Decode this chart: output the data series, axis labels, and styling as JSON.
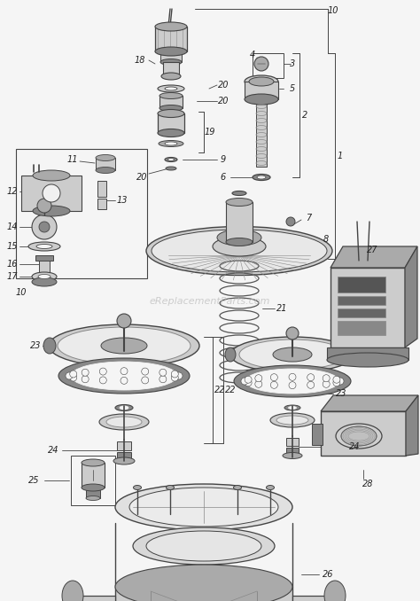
{
  "bg_color": "#f5f5f5",
  "line_color": "#444444",
  "dark_color": "#222222",
  "gray1": "#aaaaaa",
  "gray2": "#888888",
  "gray3": "#cccccc",
  "gray4": "#666666",
  "watermark_text": "eReplacementParts.com",
  "watermark_color": "#bbbbbb",
  "figsize": [
    4.74,
    6.78
  ],
  "dpi": 100
}
